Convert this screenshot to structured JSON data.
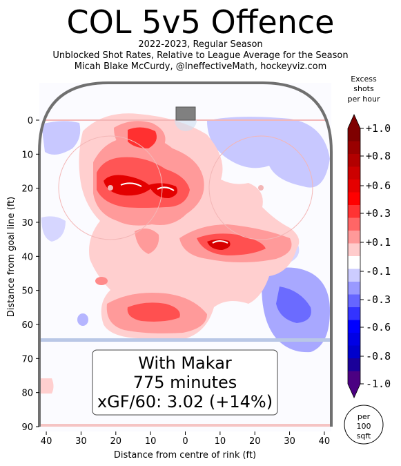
{
  "header": {
    "title": "COL 5v5 Offence",
    "subtitle_1": "2022-2023, Regular Season",
    "subtitle_2": "Unblocked Shot Rates, Relative to League Average for the Season",
    "subtitle_3": "Micah Blake McCurdy, @IneffectiveMath, hockeyviz.com"
  },
  "annotation": {
    "line_1": "With Makar",
    "line_2": "775 minutes",
    "line_3": "xGF/60: 3.02 (+14%)"
  },
  "colorbar": {
    "title_1": "Excess",
    "title_2": "shots",
    "title_3": "per hour",
    "ticks": [
      "+1.0",
      "+0.8",
      "+0.6",
      "+0.3",
      "+0.1",
      "-0.1",
      "-0.3",
      "-0.6",
      "-0.8",
      "-1.0"
    ],
    "unit_1": "per",
    "unit_2": "100",
    "unit_3": "sqft",
    "colors": [
      "#7f0000",
      "#990000",
      "#b20000",
      "#cc0000",
      "#e50000",
      "#ff0000",
      "#ff3333",
      "#ff6666",
      "#ff9999",
      "#ffcccc",
      "#ffffff",
      "#ccccff",
      "#9999ff",
      "#6666ff",
      "#3333ff",
      "#0000ff",
      "#0000e5",
      "#0000cc",
      "#1a0099",
      "#4b0082"
    ]
  },
  "chart_data": {
    "type": "heatmap",
    "title": "COL 5v5 Offence",
    "xlabel": "Distance from centre of rink (ft)",
    "ylabel": "Distance from goal line (ft)",
    "xlim": [
      42,
      -42
    ],
    "ylim": [
      90,
      -11
    ],
    "xticks": [
      40,
      30,
      20,
      10,
      0,
      10,
      20,
      30,
      40
    ],
    "yticks": [
      0,
      10,
      20,
      30,
      40,
      50,
      60,
      70,
      80,
      90
    ],
    "hotspots": [
      {
        "x": 20,
        "y": 18,
        "value": 1.0
      },
      {
        "x": 6,
        "y": 20,
        "value": 0.9
      },
      {
        "x": 12,
        "y": 6,
        "value": 0.7
      },
      {
        "x": -10,
        "y": 36,
        "value": 0.8
      },
      {
        "x": 15,
        "y": 52,
        "value": 0.6
      },
      {
        "x": 11,
        "y": 35,
        "value": 0.3
      },
      {
        "x": -27,
        "y": 56,
        "value": -0.6
      },
      {
        "x": -30,
        "y": 22,
        "value": -0.3
      },
      {
        "x": 30,
        "y": 10,
        "value": -0.2
      },
      {
        "x": 30,
        "y": 58,
        "value": -0.1
      }
    ]
  }
}
